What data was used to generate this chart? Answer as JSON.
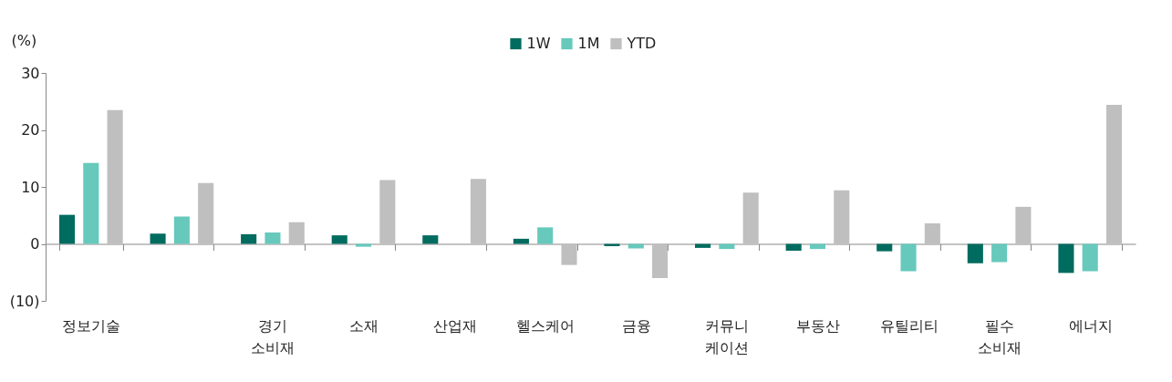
{
  "chart_data": {
    "type": "bar",
    "ylabel": "(%)",
    "categories": [
      "정보기술",
      null,
      "경기\n소비재",
      "소재",
      "산업재",
      "헬스케어",
      "금융",
      "커뮤니\n케이션",
      "부동산",
      "유틸리티",
      "필수\n소비재",
      "에너지"
    ],
    "series": [
      {
        "name": "1W",
        "color": "#006b5f",
        "values": [
          5.1,
          1.8,
          1.7,
          1.5,
          1.5,
          0.9,
          -0.4,
          -0.7,
          -1.2,
          -1.3,
          -3.4,
          -5.1
        ]
      },
      {
        "name": "1M",
        "color": "#66c9bc",
        "values": [
          14.2,
          4.8,
          2.0,
          -0.5,
          0,
          2.9,
          -0.8,
          -0.9,
          -0.9,
          -4.8,
          -3.2,
          -4.8
        ]
      },
      {
        "name": "YTD",
        "color": "#bfbfbf",
        "values": [
          23.5,
          10.7,
          3.8,
          11.2,
          11.4,
          -3.7,
          -6.0,
          9.0,
          9.4,
          3.6,
          6.5,
          24.4
        ]
      }
    ],
    "ylim": [
      -10,
      30
    ],
    "yticks": [
      30,
      20,
      10,
      0,
      {
        "value": -10,
        "label": "(10)"
      }
    ],
    "legend": "top"
  }
}
